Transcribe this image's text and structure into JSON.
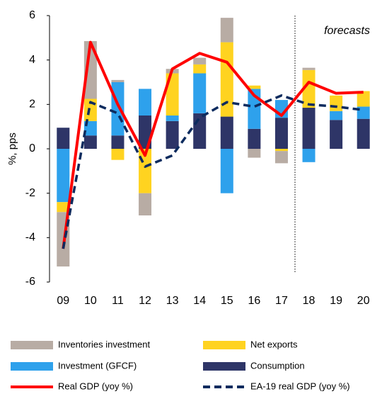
{
  "chart_data": {
    "type": "bar",
    "stacked": true,
    "y_label": "%, pps",
    "annotation": "forecasts",
    "categories": [
      "09",
      "10",
      "11",
      "12",
      "13",
      "14",
      "15",
      "16",
      "17",
      "18",
      "19",
      "20"
    ],
    "ylim": [
      -6,
      6
    ],
    "yticks": [
      -6,
      -4,
      -2,
      0,
      2,
      4,
      6
    ],
    "series": [
      {
        "name": "Inventories investment",
        "type": "bar",
        "color": "#b8aca4",
        "values": [
          -2.45,
          2.6,
          0.1,
          -1.0,
          0.2,
          0.3,
          1.1,
          -0.4,
          -0.55,
          0.1,
          0,
          0
        ]
      },
      {
        "name": "Net exports",
        "type": "bar",
        "color": "#ffd320",
        "values": [
          -0.45,
          1.0,
          -0.5,
          -2.0,
          1.9,
          0.4,
          3.35,
          0.15,
          -0.1,
          1.7,
          0.7,
          0.7
        ]
      },
      {
        "name": "Investment (GFCF)",
        "type": "bar",
        "color": "#2ea1ec",
        "values": [
          -2.4,
          0.65,
          2.4,
          1.2,
          0.25,
          1.8,
          -2.0,
          1.8,
          0.8,
          -0.6,
          0.4,
          0.55
        ]
      },
      {
        "name": "Consumption",
        "type": "bar",
        "color": "#2e3567",
        "values": [
          0.95,
          0.6,
          0.6,
          1.5,
          1.25,
          1.6,
          1.45,
          0.9,
          1.4,
          1.85,
          1.3,
          1.35
        ]
      },
      {
        "name": "Real GDP (yoy %)",
        "type": "line",
        "color": "#ff0000",
        "style": "solid",
        "values": [
          -4.5,
          4.8,
          2.0,
          -0.3,
          3.6,
          4.3,
          3.9,
          2.4,
          1.5,
          3.0,
          2.5,
          2.55
        ]
      },
      {
        "name": "EA-19 real GDP (yoy %)",
        "type": "line",
        "color": "#0d2b5e",
        "style": "dashed",
        "values": [
          -4.5,
          2.1,
          1.6,
          -0.8,
          -0.3,
          1.4,
          2.1,
          1.9,
          2.4,
          2.0,
          1.9,
          1.75
        ]
      }
    ]
  }
}
